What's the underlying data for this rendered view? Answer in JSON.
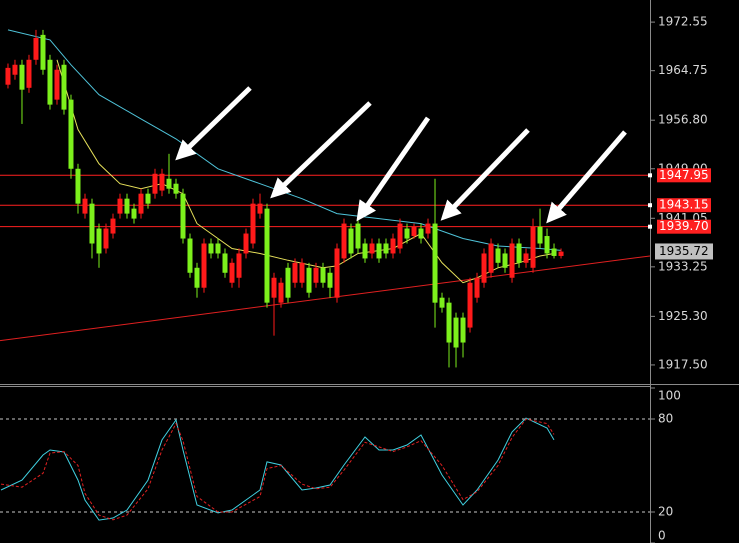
{
  "chart_data": [
    {
      "type": "candlestick",
      "open": [
        1962.5,
        1964.1,
        1965.7,
        1962.0,
        1966.5,
        1970.5,
        1966.5,
        1960.1,
        1965.7,
        1960.1,
        1949.0,
        1941.8,
        1943.4,
        1939.4,
        1936.2,
        1938.6,
        1941.8,
        1944.2,
        1942.6,
        1941.8,
        1945.0,
        1945.0,
        1945.5,
        1947.4,
        1946.6,
        1945.0,
        1937.8,
        1933.1,
        1929.9,
        1937.0,
        1937.0,
        1935.4,
        1930.7,
        1931.5,
        1935.4,
        1937.0,
        1941.8,
        1942.6,
        1928.3,
        1927.5,
        1933.1,
        1930.7,
        1930.7,
        1933.1,
        1930.7,
        1933.1,
        1932.3,
        1928.3,
        1934.6,
        1939.4,
        1940.2,
        1937.0,
        1935.4,
        1937.0,
        1937.0,
        1935.4,
        1936.2,
        1939.4,
        1938.2,
        1939.4,
        1938.6,
        1940.2,
        1928.3,
        1927.5,
        1925.1,
        1925.1,
        1923.5,
        1928.3,
        1930.7,
        1932.3,
        1936.2,
        1935.4,
        1931.5,
        1937.0,
        1933.9,
        1933.1,
        1939.7,
        1938.2,
        1936.2,
        1935.0
      ],
      "high": [
        1965.9,
        1966.5,
        1966.5,
        1967.3,
        1971.3,
        1971.3,
        1967.3,
        1965.7,
        1966.5,
        1960.9,
        1949.8,
        1945.0,
        1944.2,
        1940.2,
        1940.2,
        1941.8,
        1945.0,
        1945.0,
        1943.4,
        1945.8,
        1945.8,
        1949.0,
        1949.0,
        1951.4,
        1947.4,
        1945.8,
        1938.6,
        1933.9,
        1937.8,
        1937.8,
        1937.8,
        1936.2,
        1934.6,
        1936.2,
        1939.4,
        1944.2,
        1945.0,
        1943.4,
        1932.3,
        1931.5,
        1933.9,
        1934.6,
        1934.6,
        1933.9,
        1933.9,
        1933.9,
        1933.1,
        1937.0,
        1941.0,
        1940.2,
        1941.0,
        1937.8,
        1937.8,
        1937.8,
        1937.8,
        1938.6,
        1941.0,
        1940.2,
        1940.2,
        1940.2,
        1941.0,
        1947.4,
        1929.1,
        1928.3,
        1925.9,
        1925.9,
        1931.5,
        1932.3,
        1936.2,
        1937.8,
        1937.0,
        1936.2,
        1937.8,
        1937.8,
        1936.2,
        1941.0,
        1942.6,
        1939.4,
        1937.0,
        1936.2
      ],
      "low": [
        1961.9,
        1963.3,
        1956.2,
        1961.2,
        1965.7,
        1964.1,
        1958.5,
        1959.3,
        1957.7,
        1947.4,
        1941.8,
        1941.0,
        1934.6,
        1933.1,
        1935.4,
        1937.8,
        1941.0,
        1941.0,
        1940.2,
        1941.0,
        1942.6,
        1944.2,
        1944.6,
        1945.0,
        1944.2,
        1937.0,
        1931.5,
        1928.3,
        1929.1,
        1934.6,
        1934.6,
        1931.5,
        1929.9,
        1929.9,
        1934.6,
        1936.2,
        1941.0,
        1926.7,
        1922.2,
        1926.7,
        1927.5,
        1929.9,
        1929.9,
        1928.3,
        1929.9,
        1929.9,
        1928.3,
        1927.5,
        1933.9,
        1934.6,
        1935.4,
        1933.9,
        1934.6,
        1933.9,
        1934.6,
        1934.6,
        1935.4,
        1937.0,
        1937.8,
        1937.0,
        1937.8,
        1923.5,
        1925.9,
        1917.1,
        1917.1,
        1918.7,
        1922.7,
        1927.5,
        1929.9,
        1931.5,
        1933.1,
        1932.3,
        1930.7,
        1933.1,
        1933.1,
        1932.3,
        1936.2,
        1934.6,
        1934.6,
        1934.6
      ],
      "close": [
        1965.2,
        1965.7,
        1961.7,
        1966.5,
        1970.0,
        1964.9,
        1959.3,
        1964.9,
        1958.5,
        1949.0,
        1943.4,
        1944.2,
        1937.0,
        1935.4,
        1939.4,
        1941.0,
        1944.2,
        1941.8,
        1941.0,
        1945.0,
        1943.4,
        1948.2,
        1948.2,
        1945.8,
        1945.0,
        1937.8,
        1932.3,
        1929.9,
        1937.0,
        1935.4,
        1935.4,
        1932.3,
        1933.9,
        1935.4,
        1938.6,
        1943.4,
        1943.4,
        1927.5,
        1931.5,
        1930.7,
        1928.3,
        1933.9,
        1933.9,
        1929.1,
        1933.1,
        1930.7,
        1929.9,
        1936.2,
        1940.2,
        1935.4,
        1936.2,
        1934.6,
        1937.0,
        1934.6,
        1935.4,
        1937.8,
        1940.2,
        1937.8,
        1939.7,
        1937.8,
        1940.2,
        1927.5,
        1926.7,
        1921.1,
        1920.3,
        1921.1,
        1930.7,
        1931.5,
        1935.4,
        1937.0,
        1933.9,
        1933.1,
        1937.0,
        1933.9,
        1935.4,
        1939.7,
        1937.0,
        1935.4,
        1935.0,
        1935.7
      ],
      "up_color": "#ff1a1a",
      "down_color": "#7df01c",
      "xlim": [
        -1.14,
        91.71
      ],
      "ylim": [
        1914.6,
        1976.1
      ],
      "yticks": [
        1972.55,
        1964.75,
        {
          "value": 1956.8,
          "label": "1956.80"
        },
        {
          "value": 1949,
          "label": "1949.00"
        },
        1941.05,
        1933.25,
        {
          "value": 1925.3,
          "label": "1925.30"
        },
        {
          "value": 1917.5,
          "label": "1917.50"
        }
      ],
      "series": [
        {
          "color": "#4fc3d9",
          "x": [
            0,
            6,
            9,
            13,
            19,
            24,
            30,
            36,
            42,
            47,
            53,
            59,
            65,
            70,
            76,
            79
          ],
          "values": [
            1971.3,
            1969.7,
            1965.7,
            1960.9,
            1957.0,
            1953.8,
            1949.0,
            1946.6,
            1944.2,
            1941.8,
            1941.0,
            1940.2,
            1937.8,
            1936.6,
            1936.2,
            1935.9
          ]
        },
        {
          "color": "#e6e05a",
          "x": [
            7,
            10,
            13,
            16,
            19,
            22,
            25,
            27,
            32,
            36,
            40,
            45,
            47,
            50,
            55,
            59,
            62,
            65,
            67,
            70,
            73,
            76,
            78
          ],
          "values": [
            1966.5,
            1955.3,
            1949.8,
            1946.6,
            1945.8,
            1946.6,
            1945.0,
            1940.2,
            1936.2,
            1935.4,
            1934.3,
            1933.1,
            1933.4,
            1935.4,
            1936.2,
            1938.6,
            1933.9,
            1930.7,
            1931.5,
            1933.1,
            1933.9,
            1935.0,
            1935.4
          ]
        }
      ],
      "levels": [
        {
          "value": 1947.95,
          "label": "1947.95"
        },
        {
          "value": 1943.15,
          "label": "1943.15"
        },
        {
          "value": 1939.7,
          "label": "1939.70"
        }
      ],
      "level_color": "#ff2020",
      "last_price": {
        "value": 1935.72,
        "label": "1935.72"
      },
      "trendline": {
        "x": [
          -1.14,
          91.71
        ],
        "values": [
          1921.4,
          1935.0
        ],
        "color": "#e02020"
      }
    },
    {
      "type": "line",
      "xlim": [
        -1.14,
        91.71
      ],
      "ylim": [
        0,
        100
      ],
      "yticks": [
        100,
        80,
        20,
        0
      ],
      "levels": [
        80,
        20
      ],
      "series": [
        {
          "color": "#40d0e0",
          "x": [
            -1,
            2,
            5,
            6,
            8,
            10,
            11,
            13,
            15,
            17,
            20,
            22,
            24,
            25,
            27,
            30,
            32,
            36,
            37,
            39,
            42,
            44,
            46,
            48,
            51,
            53,
            55,
            57,
            59,
            62,
            65,
            67,
            70,
            72,
            74,
            77,
            78
          ],
          "values": [
            34.2,
            40.6,
            56.8,
            60.0,
            58.7,
            40.6,
            27.7,
            14.8,
            16.1,
            21.3,
            40.6,
            66.5,
            79.4,
            60.0,
            24.5,
            19.4,
            21.3,
            34.2,
            52.3,
            50.3,
            34.2,
            35.5,
            37.4,
            50.3,
            68.4,
            60.0,
            60.0,
            63.2,
            69.7,
            43.9,
            24.5,
            34.2,
            53.5,
            71.6,
            80.6,
            74.2,
            66.5
          ]
        },
        {
          "color": "#e02020",
          "dash": true,
          "x": [
            -1,
            2,
            5,
            6,
            8,
            10,
            11,
            13,
            15,
            17,
            20,
            22,
            24,
            25,
            27,
            30,
            32,
            36,
            37,
            39,
            42,
            44,
            46,
            48,
            51,
            53,
            55,
            57,
            59,
            62,
            65,
            67,
            70,
            72,
            74,
            77,
            78
          ],
          "values": [
            38,
            36,
            45,
            58,
            59,
            50,
            32,
            18,
            15,
            18,
            35,
            60,
            77,
            66,
            30,
            20,
            20,
            30,
            48,
            50,
            38,
            35,
            36,
            47,
            65,
            62,
            59,
            62,
            66,
            50,
            28,
            33,
            50,
            68,
            80,
            77,
            70
          ]
        }
      ]
    }
  ]
}
